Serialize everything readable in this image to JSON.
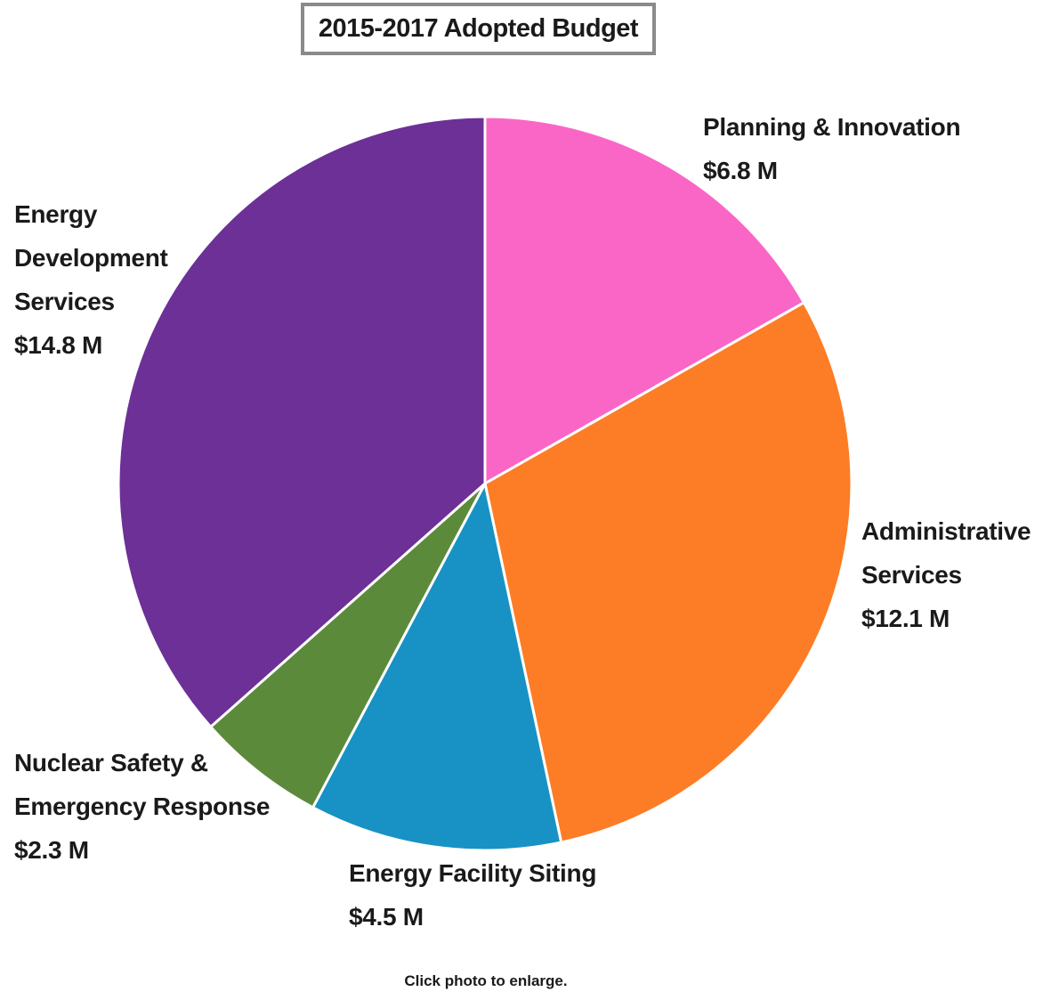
{
  "page": {
    "title": "2015-2017 Adopted Budget",
    "caption": "Click photo to enlarge."
  },
  "chart_data": {
    "type": "pie",
    "title": "2015-2017 Adopted Budget",
    "unit": "millions USD",
    "total": 40.5,
    "start_angle_deg": 0,
    "direction": "clockwise",
    "legend_position": "outside-labels",
    "separator_color": "#ffffff",
    "slices": [
      {
        "label": "Planning & Innovation",
        "value": 6.8,
        "display": "$6.8 M",
        "color": "#fa66c6"
      },
      {
        "label": "Administrative Services",
        "value": 12.1,
        "display": "$12.1 M",
        "color": "#fc7d26"
      },
      {
        "label": "Energy Facility Siting",
        "value": 4.5,
        "display": "$4.5 M",
        "color": "#1892c4"
      },
      {
        "label": "Nuclear Safety & Emergency Response",
        "value": 2.3,
        "display": "$2.3 M",
        "color": "#5c8a3b"
      },
      {
        "label": "Energy Development Services",
        "value": 14.8,
        "display": "$14.8 M",
        "color": "#6c3096"
      }
    ]
  },
  "labels": {
    "planning": [
      "Planning & Innovation",
      "$6.8 M"
    ],
    "administrative": [
      "Administrative",
      "Services",
      "$12.1 M"
    ],
    "energy_development": [
      "Energy",
      "Development",
      "Services",
      "$14.8 M"
    ],
    "nuclear": [
      "Nuclear Safety &",
      "Emergency Response",
      "$2.3 M"
    ],
    "facility_siting": [
      "Energy Facility Siting",
      "$4.5 M"
    ]
  }
}
